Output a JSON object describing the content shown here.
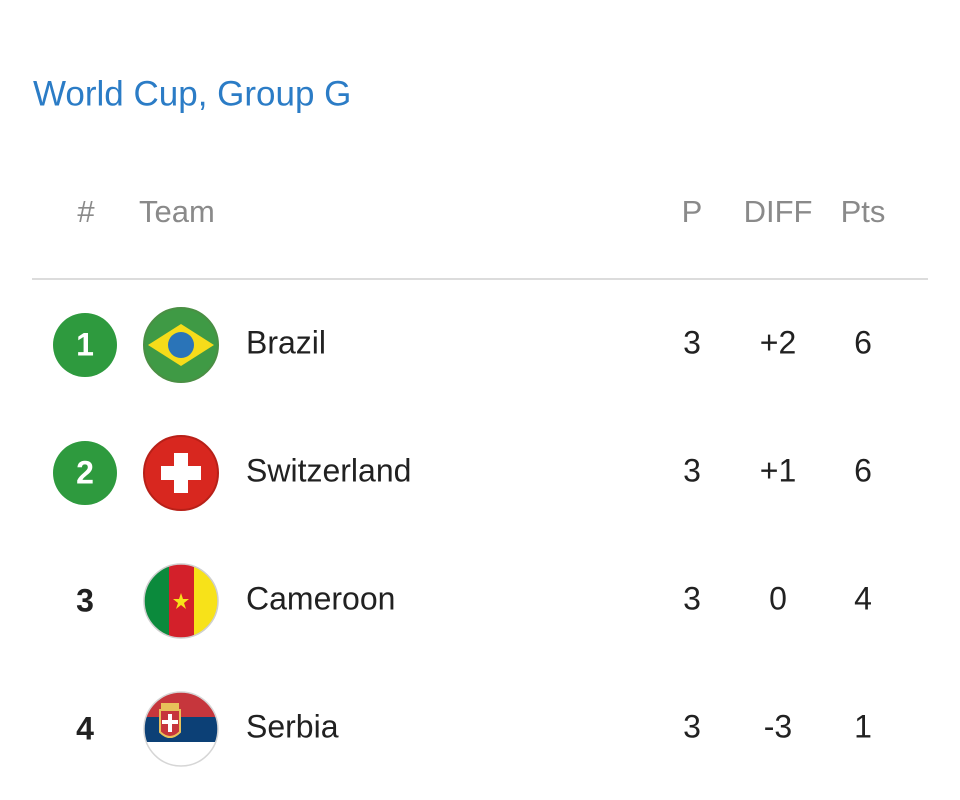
{
  "title": "World Cup, Group G",
  "table": {
    "header": [
      "#",
      "Team",
      "P",
      "DIFF",
      "Pts"
    ],
    "rows": [
      [
        1,
        "Brazil",
        3,
        "+2",
        6
      ],
      [
        2,
        "Switzerland",
        3,
        "+1",
        6
      ],
      [
        3,
        "Cameroon",
        3,
        "0",
        4
      ],
      [
        4,
        "Serbia",
        3,
        "-3",
        1
      ]
    ]
  }
}
